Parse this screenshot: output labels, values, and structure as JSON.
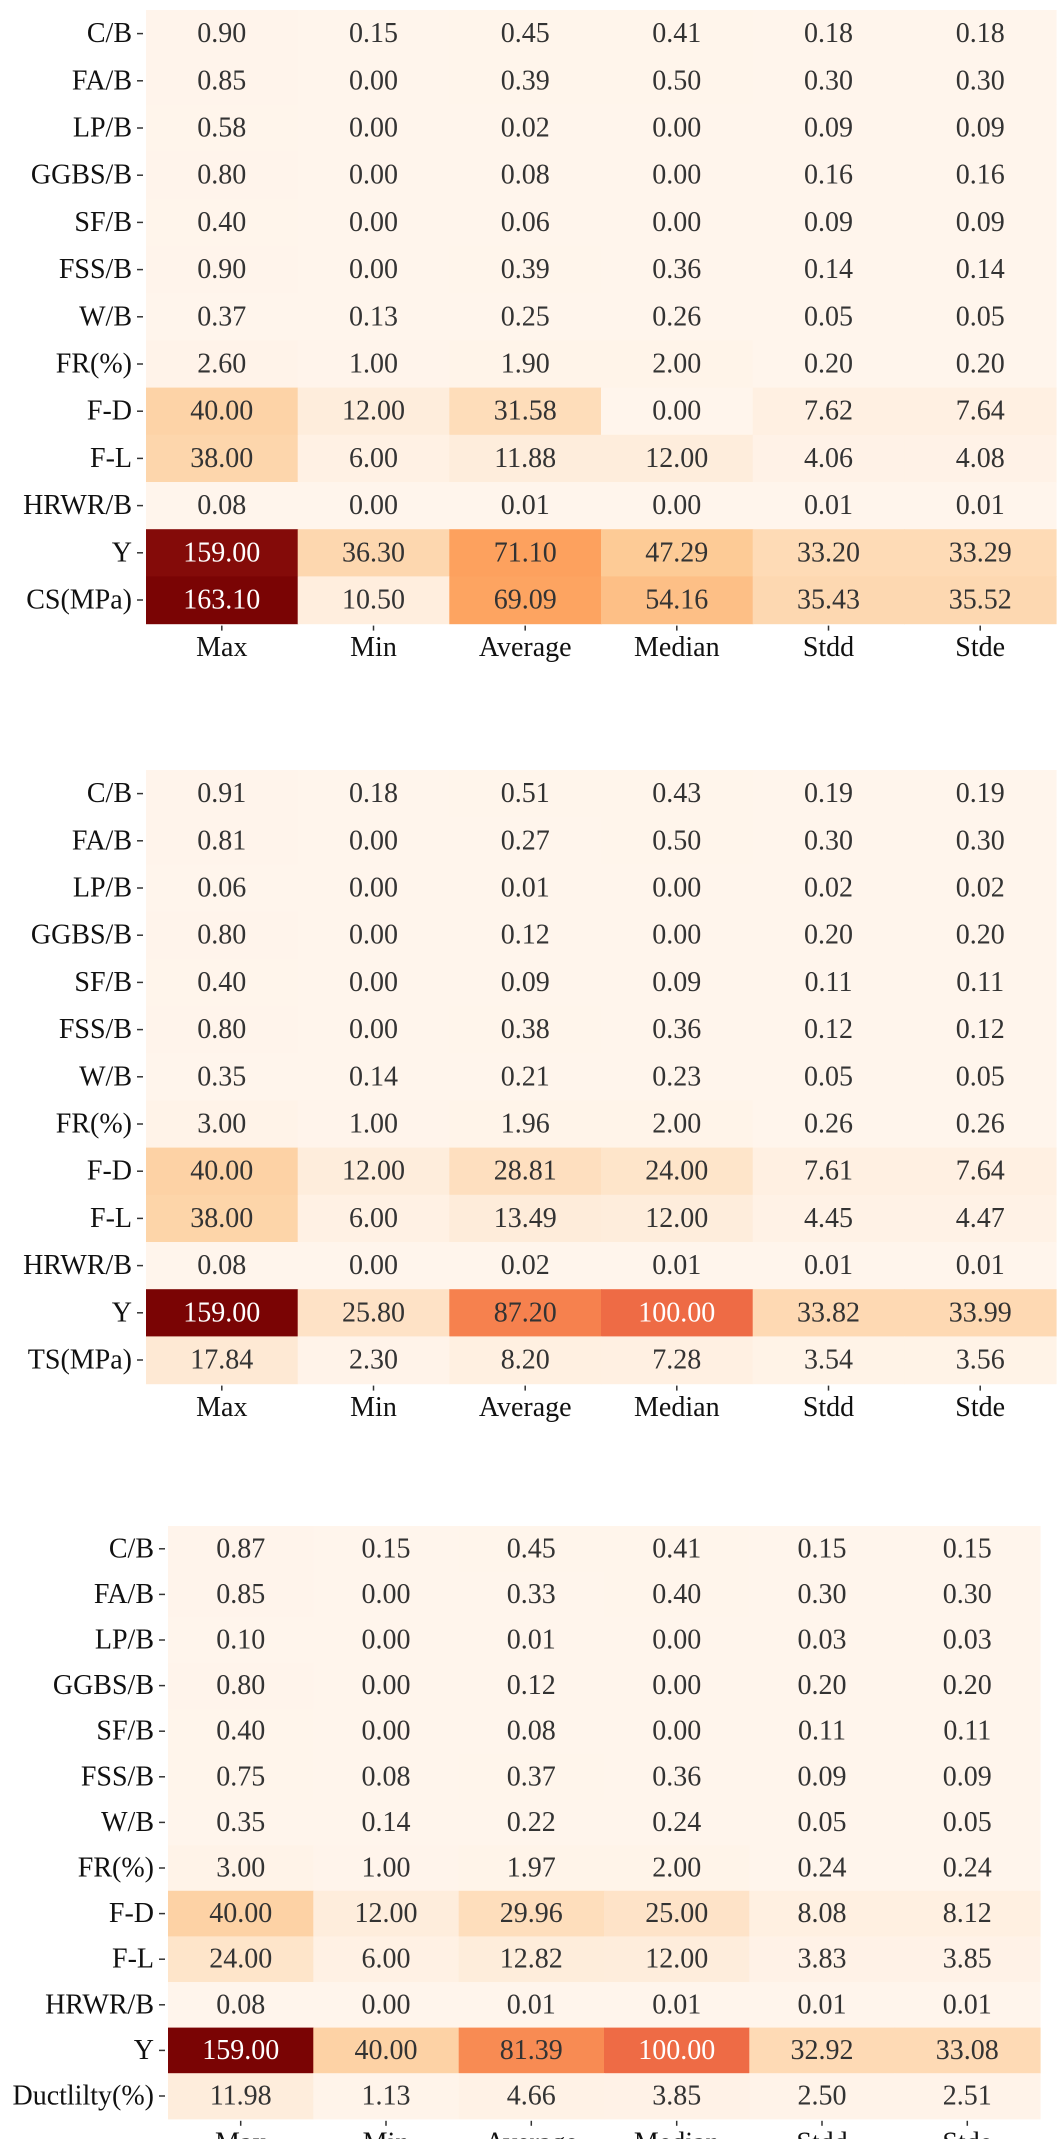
{
  "colors": {
    "colormap": [
      "#fff5ec",
      "#fee6cd",
      "#fdcc98",
      "#fda35f",
      "#f57a4b",
      "#e3543c",
      "#b02a1f",
      "#7a0404"
    ],
    "text_dark": "#333333",
    "text_light": "#ffffff"
  },
  "chart_data": [
    {
      "type": "heatmap",
      "rows": [
        "C/B",
        "FA/B",
        "LP/B",
        "GGBS/B",
        "SF/B",
        "FSS/B",
        "W/B",
        "FR(%)",
        "F-D",
        "F-L",
        "HRWR/B",
        "Y",
        "CS(MPa)"
      ],
      "columns": [
        "Max",
        "Min",
        "Average",
        "Median",
        "Stdd",
        "Stde"
      ],
      "values": [
        [
          "0.90",
          "0.15",
          "0.45",
          "0.41",
          "0.18",
          "0.18"
        ],
        [
          "0.85",
          "0.00",
          "0.39",
          "0.50",
          "0.30",
          "0.30"
        ],
        [
          "0.58",
          "0.00",
          "0.02",
          "0.00",
          "0.09",
          "0.09"
        ],
        [
          "0.80",
          "0.00",
          "0.08",
          "0.00",
          "0.16",
          "0.16"
        ],
        [
          "0.40",
          "0.00",
          "0.06",
          "0.00",
          "0.09",
          "0.09"
        ],
        [
          "0.90",
          "0.00",
          "0.39",
          "0.36",
          "0.14",
          "0.14"
        ],
        [
          "0.37",
          "0.13",
          "0.25",
          "0.26",
          "0.05",
          "0.05"
        ],
        [
          "2.60",
          "1.00",
          "1.90",
          "2.00",
          "0.20",
          "0.20"
        ],
        [
          "40.00",
          "12.00",
          "31.58",
          "0.00",
          "7.62",
          "7.64"
        ],
        [
          "38.00",
          "6.00",
          "11.88",
          "12.00",
          "4.06",
          "4.08"
        ],
        [
          "0.08",
          "0.00",
          "0.01",
          "0.00",
          "0.01",
          "0.01"
        ],
        [
          "159.00",
          "36.30",
          "71.10",
          "47.29",
          "33.20",
          "33.29"
        ],
        [
          "163.10",
          "10.50",
          "69.09",
          "54.16",
          "35.43",
          "35.52"
        ]
      ]
    },
    {
      "type": "heatmap",
      "rows": [
        "C/B",
        "FA/B",
        "LP/B",
        "GGBS/B",
        "SF/B",
        "FSS/B",
        "W/B",
        "FR(%)",
        "F-D",
        "F-L",
        "HRWR/B",
        "Y",
        "TS(MPa)"
      ],
      "columns": [
        "Max",
        "Min",
        "Average",
        "Median",
        "Stdd",
        "Stde"
      ],
      "values": [
        [
          "0.91",
          "0.18",
          "0.51",
          "0.43",
          "0.19",
          "0.19"
        ],
        [
          "0.81",
          "0.00",
          "0.27",
          "0.50",
          "0.30",
          "0.30"
        ],
        [
          "0.06",
          "0.00",
          "0.01",
          "0.00",
          "0.02",
          "0.02"
        ],
        [
          "0.80",
          "0.00",
          "0.12",
          "0.00",
          "0.20",
          "0.20"
        ],
        [
          "0.40",
          "0.00",
          "0.09",
          "0.09",
          "0.11",
          "0.11"
        ],
        [
          "0.80",
          "0.00",
          "0.38",
          "0.36",
          "0.12",
          "0.12"
        ],
        [
          "0.35",
          "0.14",
          "0.21",
          "0.23",
          "0.05",
          "0.05"
        ],
        [
          "3.00",
          "1.00",
          "1.96",
          "2.00",
          "0.26",
          "0.26"
        ],
        [
          "40.00",
          "12.00",
          "28.81",
          "24.00",
          "7.61",
          "7.64"
        ],
        [
          "38.00",
          "6.00",
          "13.49",
          "12.00",
          "4.45",
          "4.47"
        ],
        [
          "0.08",
          "0.00",
          "0.02",
          "0.01",
          "0.01",
          "0.01"
        ],
        [
          "159.00",
          "25.80",
          "87.20",
          "100.00",
          "33.82",
          "33.99"
        ],
        [
          "17.84",
          "2.30",
          "8.20",
          "7.28",
          "3.54",
          "3.56"
        ]
      ]
    },
    {
      "type": "heatmap",
      "rows": [
        "C/B",
        "FA/B",
        "LP/B",
        "GGBS/B",
        "SF/B",
        "FSS/B",
        "W/B",
        "FR(%)",
        "F-D",
        "F-L",
        "HRWR/B",
        "Y",
        "Ductlilty(%)"
      ],
      "columns": [
        "Max",
        "Min",
        "Average",
        "Median",
        "Stdd",
        "Stde"
      ],
      "values": [
        [
          "0.87",
          "0.15",
          "0.45",
          "0.41",
          "0.15",
          "0.15"
        ],
        [
          "0.85",
          "0.00",
          "0.33",
          "0.40",
          "0.30",
          "0.30"
        ],
        [
          "0.10",
          "0.00",
          "0.01",
          "0.00",
          "0.03",
          "0.03"
        ],
        [
          "0.80",
          "0.00",
          "0.12",
          "0.00",
          "0.20",
          "0.20"
        ],
        [
          "0.40",
          "0.00",
          "0.08",
          "0.00",
          "0.11",
          "0.11"
        ],
        [
          "0.75",
          "0.08",
          "0.37",
          "0.36",
          "0.09",
          "0.09"
        ],
        [
          "0.35",
          "0.14",
          "0.22",
          "0.24",
          "0.05",
          "0.05"
        ],
        [
          "3.00",
          "1.00",
          "1.97",
          "2.00",
          "0.24",
          "0.24"
        ],
        [
          "40.00",
          "12.00",
          "29.96",
          "25.00",
          "8.08",
          "8.12"
        ],
        [
          "24.00",
          "6.00",
          "12.82",
          "12.00",
          "3.83",
          "3.85"
        ],
        [
          "0.08",
          "0.00",
          "0.01",
          "0.01",
          "0.01",
          "0.01"
        ],
        [
          "159.00",
          "40.00",
          "81.39",
          "100.00",
          "32.92",
          "33.08"
        ],
        [
          "11.98",
          "1.13",
          "4.66",
          "3.85",
          "2.50",
          "2.51"
        ]
      ]
    }
  ]
}
